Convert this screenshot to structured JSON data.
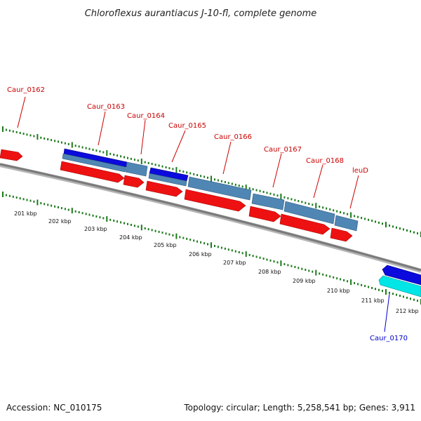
{
  "title": "Chloroflexus aurantiacus J-10-fl, complete genome",
  "footer": {
    "accession": "Accession: NC_010175",
    "summary": "Topology: circular; Length: 5,258,541 bp; Genes: 3,911"
  },
  "colors": {
    "backbone": "#808080",
    "tick": "#1a7a1a",
    "cds_red": "#ee1111",
    "gene_blue": "#0b0bdd",
    "gene_steel": "#4f86b4",
    "gene_cyan": "#00e5e5",
    "label_red": "#cc0000",
    "label_blue": "#0000cc"
  },
  "gene_labels": [
    {
      "id": "caur-0162",
      "text": "Caur_0162",
      "color": "red"
    },
    {
      "id": "caur-0163",
      "text": "Caur_0163",
      "color": "red"
    },
    {
      "id": "caur-0164",
      "text": "Caur_0164",
      "color": "red"
    },
    {
      "id": "caur-0165",
      "text": "Caur_0165",
      "color": "red"
    },
    {
      "id": "caur-0166",
      "text": "Caur_0166",
      "color": "red"
    },
    {
      "id": "caur-0167",
      "text": "Caur_0167",
      "color": "red"
    },
    {
      "id": "caur-0168",
      "text": "Caur_0168",
      "color": "red"
    },
    {
      "id": "leud",
      "text": "leuD",
      "color": "red"
    },
    {
      "id": "caur-0170",
      "text": "Caur_0170",
      "color": "blue"
    }
  ],
  "scale_labels": [
    "201 kbp",
    "202 kbp",
    "203 kbp",
    "204 kbp",
    "205 kbp",
    "206 kbp",
    "207 kbp",
    "208 kbp",
    "209 kbp",
    "210 kbp",
    "211 kbp",
    "212 kbp"
  ]
}
